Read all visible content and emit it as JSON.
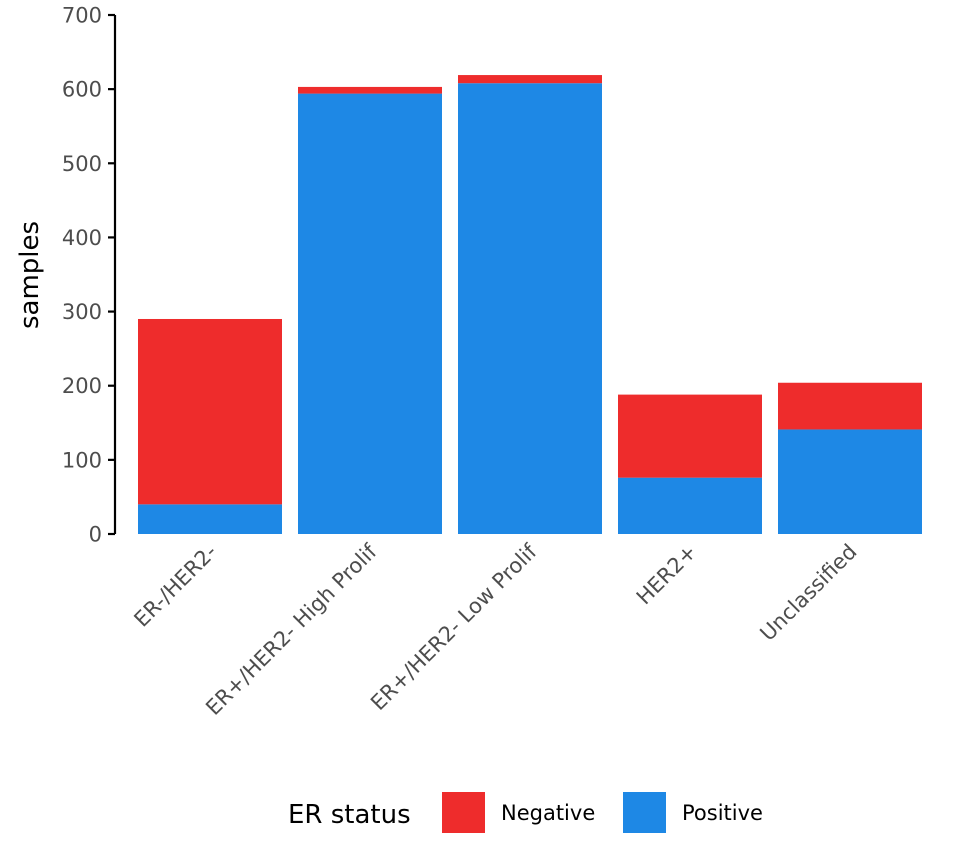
{
  "chart_data": {
    "type": "bar",
    "stacked": true,
    "categories": [
      "ER-/HER2-",
      "ER+/HER2- High Prolif",
      "ER+/HER2- Low Prolif",
      "HER2+",
      "Unclassified"
    ],
    "series": [
      {
        "name": "Positive",
        "color": "#1e88e5",
        "values": [
          40,
          594,
          608,
          76,
          141
        ]
      },
      {
        "name": "Negative",
        "color": "#ee2c2c",
        "values": [
          250,
          9,
          11,
          112,
          63
        ]
      }
    ],
    "title": "",
    "xlabel": "",
    "ylabel": "samples",
    "ylim": [
      0,
      700
    ],
    "yticks": [
      0,
      100,
      200,
      300,
      400,
      500,
      600,
      700
    ],
    "xtick_rotation_deg": -45,
    "grid": false,
    "legend": {
      "title": "ER status",
      "position": "bottom",
      "entries": [
        {
          "label": "Negative",
          "color": "#ee2c2c"
        },
        {
          "label": "Positive",
          "color": "#1e88e5"
        }
      ]
    }
  }
}
